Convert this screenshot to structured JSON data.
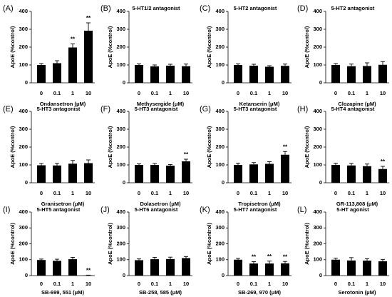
{
  "chart_data": [
    {
      "type": "bar",
      "label": "(A)",
      "ylabel": "ApoE (%control)",
      "xlabel": "Ondansetron (μM)",
      "categories": [
        "0",
        "0.1",
        "1",
        "10"
      ],
      "values": [
        100,
        110,
        198,
        292
      ],
      "errors": [
        8,
        14,
        20,
        44
      ],
      "significance": [
        "",
        "",
        "**",
        "**"
      ],
      "ylim": [
        0,
        400
      ],
      "yticks": [
        0,
        100,
        200,
        300,
        400
      ],
      "bar_color": "#000000"
    },
    {
      "type": "bar",
      "label": "(B)",
      "title": "5-HT1/2 antagonist",
      "ylabel": "ApoE (%control)",
      "xlabel": "Methysergide (μM)",
      "categories": [
        "0",
        "0.1",
        "1",
        "10"
      ],
      "values": [
        100,
        92,
        96,
        93
      ],
      "errors": [
        6,
        8,
        8,
        12
      ],
      "ylim": [
        0,
        400
      ],
      "yticks": [
        0,
        100,
        200,
        300,
        400
      ],
      "bar_color": "#000000"
    },
    {
      "type": "bar",
      "label": "(C)",
      "title": "5-HT2 antagonist",
      "ylabel": "ApoE (%control)",
      "xlabel": "Ketanserin (μM)",
      "categories": [
        "0",
        "0.1",
        "1",
        "10"
      ],
      "values": [
        100,
        96,
        90,
        95
      ],
      "errors": [
        6,
        8,
        6,
        10
      ],
      "ylim": [
        0,
        400
      ],
      "yticks": [
        0,
        100,
        200,
        300,
        400
      ],
      "bar_color": "#000000"
    },
    {
      "type": "bar",
      "label": "(D)",
      "title": "5-HT2 antagonist",
      "ylabel": "ApoE (%control)",
      "xlabel": "Clozapine (μM)",
      "categories": [
        "0",
        "0.1",
        "1",
        "10"
      ],
      "values": [
        100,
        93,
        94,
        101
      ],
      "errors": [
        8,
        12,
        18,
        18
      ],
      "ylim": [
        0,
        400
      ],
      "yticks": [
        0,
        100,
        200,
        300,
        400
      ],
      "bar_color": "#000000"
    },
    {
      "type": "bar",
      "label": "(E)",
      "title": "5-HT3 antagonist",
      "ylabel": "ApoE (%control)",
      "xlabel": "Granisetron (μM)",
      "categories": [
        "0",
        "0.1",
        "1",
        "10"
      ],
      "values": [
        98,
        97,
        107,
        110
      ],
      "errors": [
        10,
        12,
        18,
        18
      ],
      "ylim": [
        0,
        400
      ],
      "yticks": [
        0,
        100,
        200,
        300,
        400
      ],
      "bar_color": "#000000"
    },
    {
      "type": "bar",
      "label": "(F)",
      "title": "5-HT3 antagonist",
      "ylabel": "ApoE (%control)",
      "xlabel": "Dolasetron (μM)",
      "categories": [
        "0",
        "0.1",
        "1",
        "10"
      ],
      "values": [
        100,
        100,
        96,
        120
      ],
      "errors": [
        6,
        8,
        6,
        12
      ],
      "significance": [
        "",
        "",
        "",
        "**"
      ],
      "ylim": [
        0,
        400
      ],
      "yticks": [
        0,
        100,
        200,
        300,
        400
      ],
      "bar_color": "#000000"
    },
    {
      "type": "bar",
      "label": "(G)",
      "title": "5-HT3 antagonist",
      "ylabel": "ApoE (%control)",
      "xlabel": "Tropisetron (μM)",
      "categories": [
        "0",
        "0.1",
        "1",
        "10"
      ],
      "values": [
        100,
        103,
        106,
        157
      ],
      "errors": [
        10,
        10,
        12,
        18
      ],
      "significance": [
        "",
        "",
        "",
        "**"
      ],
      "ylim": [
        0,
        400
      ],
      "yticks": [
        0,
        100,
        200,
        300,
        400
      ],
      "bar_color": "#000000"
    },
    {
      "type": "bar",
      "label": "(H)",
      "title": "5-HT4 antagonist",
      "ylabel": "ApoE (%control)",
      "xlabel": "GR-113,808 (μM)",
      "categories": [
        "0",
        "0.1",
        "1",
        "10"
      ],
      "values": [
        100,
        97,
        93,
        77
      ],
      "errors": [
        10,
        12,
        12,
        15
      ],
      "significance": [
        "",
        "",
        "",
        "**"
      ],
      "ylim": [
        0,
        400
      ],
      "yticks": [
        0,
        100,
        200,
        300,
        400
      ],
      "bar_color": "#000000"
    },
    {
      "type": "bar",
      "label": "(I)",
      "title": "5-HT5 antagonist",
      "ylabel": "ApoE (%control)",
      "xlabel": "SB-699, 551 (μM)",
      "categories": [
        "0",
        "0.1",
        "1",
        "10"
      ],
      "values": [
        98,
        93,
        103,
        2
      ],
      "errors": [
        6,
        10,
        12,
        1
      ],
      "significance": [
        "",
        "",
        "",
        "**"
      ],
      "ylim": [
        0,
        400
      ],
      "yticks": [
        0,
        100,
        200,
        300,
        400
      ],
      "bar_color": "#000000"
    },
    {
      "type": "bar",
      "label": "(J)",
      "title": "5-HT6 antagonist",
      "ylabel": "ApoE (%control)",
      "xlabel": "SB-258, 585 (μM)",
      "categories": [
        "0",
        "0.1",
        "1",
        "10"
      ],
      "values": [
        97,
        103,
        104,
        110
      ],
      "errors": [
        8,
        12,
        12,
        10
      ],
      "ylim": [
        0,
        400
      ],
      "yticks": [
        0,
        100,
        200,
        300,
        400
      ],
      "bar_color": "#000000"
    },
    {
      "type": "bar",
      "label": "(K)",
      "title": "5-HT7 antagonist",
      "ylabel": "ApoE (%control)",
      "xlabel": "SB-269, 970 (μM)",
      "categories": [
        "0",
        "0.1",
        "1",
        "10"
      ],
      "values": [
        100,
        76,
        76,
        77
      ],
      "errors": [
        8,
        12,
        15,
        12
      ],
      "significance": [
        "",
        "**",
        "**",
        "**"
      ],
      "ylim": [
        0,
        400
      ],
      "yticks": [
        0,
        100,
        200,
        300,
        400
      ],
      "bar_color": "#000000"
    },
    {
      "type": "bar",
      "label": "(L)",
      "title": "5-HT agonist",
      "ylabel": "ApoE (%control)",
      "xlabel": "Serotonin (μM)",
      "categories": [
        "0",
        "0.1",
        "1",
        "10"
      ],
      "values": [
        100,
        95,
        94,
        90
      ],
      "errors": [
        10,
        18,
        12,
        12
      ],
      "ylim": [
        0,
        400
      ],
      "yticks": [
        0,
        100,
        200,
        300,
        400
      ],
      "bar_color": "#000000"
    }
  ]
}
